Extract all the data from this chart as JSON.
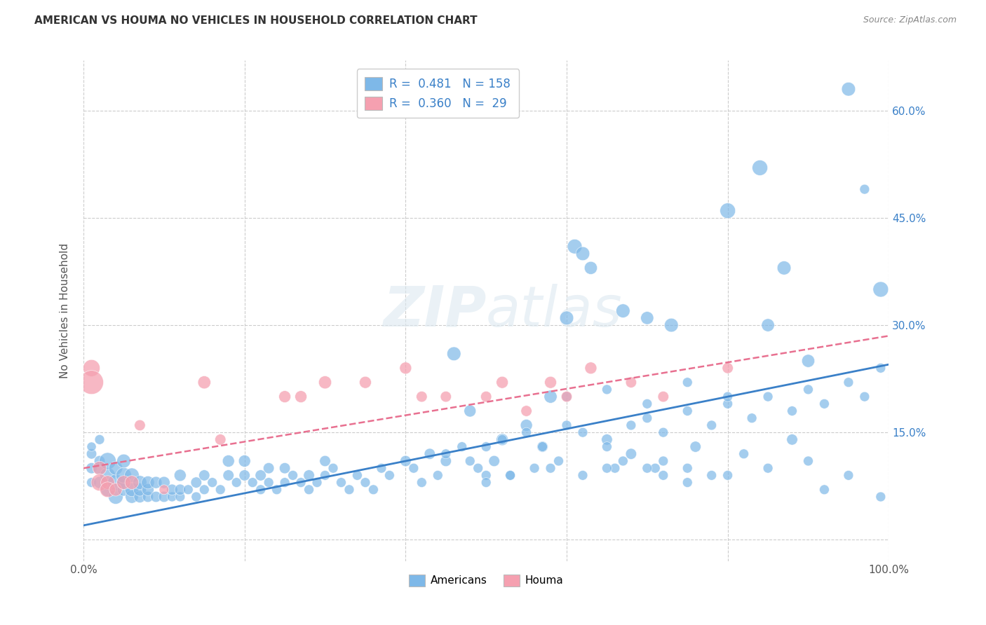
{
  "title": "AMERICAN VS HOUMA NO VEHICLES IN HOUSEHOLD CORRELATION CHART",
  "source": "Source: ZipAtlas.com",
  "ylabel": "No Vehicles in Household",
  "xlim": [
    0,
    1.0
  ],
  "ylim": [
    -0.03,
    0.67
  ],
  "xticks": [
    0.0,
    0.2,
    0.4,
    0.6,
    0.8,
    1.0
  ],
  "xticklabels": [
    "0.0%",
    "",
    "",
    "",
    "",
    "100.0%"
  ],
  "yticks": [
    0.0,
    0.15,
    0.3,
    0.45,
    0.6
  ],
  "yticklabels": [
    "",
    "15.0%",
    "30.0%",
    "45.0%",
    "60.0%"
  ],
  "blue_color": "#7EB8E8",
  "pink_color": "#F5A0B0",
  "blue_line_color": "#3A80C8",
  "pink_line_color": "#E87090",
  "legend_R_blue": "R =  0.481",
  "legend_N_blue": "N = 158",
  "legend_R_pink": "R =  0.360",
  "legend_N_pink": "N =  29",
  "watermark_zip": "ZIP",
  "watermark_atlas": "atlas",
  "blue_scatter_x": [
    0.01,
    0.01,
    0.01,
    0.01,
    0.02,
    0.02,
    0.02,
    0.02,
    0.03,
    0.03,
    0.03,
    0.04,
    0.04,
    0.04,
    0.05,
    0.05,
    0.05,
    0.05,
    0.06,
    0.06,
    0.06,
    0.07,
    0.07,
    0.07,
    0.08,
    0.08,
    0.08,
    0.09,
    0.09,
    0.1,
    0.1,
    0.11,
    0.11,
    0.12,
    0.12,
    0.12,
    0.13,
    0.14,
    0.14,
    0.15,
    0.15,
    0.16,
    0.17,
    0.18,
    0.18,
    0.19,
    0.2,
    0.2,
    0.21,
    0.22,
    0.22,
    0.23,
    0.23,
    0.24,
    0.25,
    0.25,
    0.26,
    0.27,
    0.28,
    0.28,
    0.29,
    0.3,
    0.3,
    0.31,
    0.32,
    0.33,
    0.34,
    0.35,
    0.36,
    0.37,
    0.38,
    0.4,
    0.41,
    0.42,
    0.43,
    0.44,
    0.45,
    0.46,
    0.47,
    0.48,
    0.49,
    0.5,
    0.51,
    0.52,
    0.53,
    0.55,
    0.56,
    0.57,
    0.58,
    0.59,
    0.6,
    0.61,
    0.62,
    0.63,
    0.65,
    0.66,
    0.67,
    0.68,
    0.7,
    0.71,
    0.72,
    0.73,
    0.75,
    0.76,
    0.78,
    0.8,
    0.82,
    0.84,
    0.85,
    0.87
  ],
  "blue_scatter_y": [
    0.08,
    0.1,
    0.12,
    0.13,
    0.08,
    0.1,
    0.11,
    0.14,
    0.07,
    0.09,
    0.11,
    0.06,
    0.08,
    0.1,
    0.07,
    0.08,
    0.09,
    0.11,
    0.06,
    0.07,
    0.09,
    0.06,
    0.07,
    0.08,
    0.06,
    0.07,
    0.08,
    0.06,
    0.08,
    0.06,
    0.08,
    0.06,
    0.07,
    0.06,
    0.07,
    0.09,
    0.07,
    0.06,
    0.08,
    0.07,
    0.09,
    0.08,
    0.07,
    0.09,
    0.11,
    0.08,
    0.09,
    0.11,
    0.08,
    0.07,
    0.09,
    0.08,
    0.1,
    0.07,
    0.08,
    0.1,
    0.09,
    0.08,
    0.07,
    0.09,
    0.08,
    0.09,
    0.11,
    0.1,
    0.08,
    0.07,
    0.09,
    0.08,
    0.07,
    0.1,
    0.09,
    0.11,
    0.1,
    0.08,
    0.12,
    0.09,
    0.11,
    0.26,
    0.13,
    0.18,
    0.1,
    0.09,
    0.11,
    0.14,
    0.09,
    0.16,
    0.1,
    0.13,
    0.2,
    0.11,
    0.31,
    0.41,
    0.4,
    0.38,
    0.14,
    0.1,
    0.32,
    0.12,
    0.31,
    0.1,
    0.11,
    0.3,
    0.08,
    0.13,
    0.09,
    0.46,
    0.12,
    0.52,
    0.3,
    0.38
  ],
  "blue_scatter_size": [
    20,
    25,
    22,
    18,
    30,
    35,
    25,
    20,
    40,
    50,
    60,
    45,
    55,
    40,
    35,
    45,
    50,
    40,
    35,
    40,
    45,
    30,
    35,
    40,
    25,
    30,
    35,
    25,
    30,
    25,
    30,
    20,
    25,
    20,
    25,
    30,
    20,
    20,
    25,
    20,
    25,
    20,
    20,
    25,
    30,
    20,
    25,
    30,
    20,
    20,
    25,
    20,
    25,
    20,
    20,
    25,
    20,
    20,
    20,
    25,
    20,
    20,
    25,
    20,
    20,
    20,
    20,
    20,
    20,
    20,
    20,
    25,
    20,
    20,
    25,
    20,
    25,
    40,
    20,
    30,
    20,
    20,
    25,
    30,
    20,
    30,
    20,
    25,
    35,
    20,
    40,
    45,
    40,
    35,
    25,
    20,
    40,
    25,
    35,
    20,
    20,
    40,
    20,
    25,
    20,
    50,
    20,
    50,
    35,
    40
  ],
  "blue_scatter_x2": [
    0.88,
    0.9,
    0.92,
    0.95,
    0.97,
    0.99,
    0.5,
    0.53,
    0.58,
    0.62,
    0.65,
    0.67,
    0.7,
    0.72,
    0.75,
    0.8,
    0.85,
    0.9,
    0.95,
    0.99,
    0.45,
    0.48,
    0.5,
    0.52,
    0.55,
    0.57,
    0.6,
    0.62,
    0.65,
    0.68,
    0.7,
    0.72,
    0.75,
    0.78,
    0.8,
    0.83,
    0.85,
    0.88,
    0.9,
    0.92,
    0.95,
    0.97,
    0.99,
    0.6,
    0.65,
    0.7,
    0.75,
    0.8
  ],
  "blue_scatter_y2": [
    0.14,
    0.25,
    0.07,
    0.63,
    0.49,
    0.35,
    0.08,
    0.09,
    0.1,
    0.09,
    0.1,
    0.11,
    0.1,
    0.09,
    0.1,
    0.09,
    0.1,
    0.11,
    0.09,
    0.06,
    0.12,
    0.11,
    0.13,
    0.14,
    0.15,
    0.13,
    0.16,
    0.15,
    0.13,
    0.16,
    0.17,
    0.15,
    0.18,
    0.16,
    0.19,
    0.17,
    0.2,
    0.18,
    0.21,
    0.19,
    0.22,
    0.2,
    0.24,
    0.2,
    0.21,
    0.19,
    0.22,
    0.2
  ],
  "blue_scatter_size2": [
    25,
    35,
    20,
    40,
    20,
    50,
    20,
    20,
    20,
    20,
    20,
    20,
    20,
    20,
    20,
    20,
    20,
    20,
    20,
    20,
    20,
    20,
    20,
    20,
    20,
    20,
    20,
    20,
    20,
    20,
    20,
    20,
    20,
    20,
    20,
    20,
    20,
    20,
    20,
    20,
    20,
    20,
    20,
    20,
    20,
    20,
    20,
    20
  ],
  "pink_scatter_x": [
    0.01,
    0.01,
    0.02,
    0.02,
    0.03,
    0.03,
    0.04,
    0.05,
    0.06,
    0.07,
    0.1,
    0.15,
    0.17,
    0.25,
    0.27,
    0.3,
    0.35,
    0.4,
    0.42,
    0.45,
    0.5,
    0.52,
    0.55,
    0.58,
    0.6,
    0.63,
    0.68,
    0.72,
    0.8
  ],
  "pink_scatter_y": [
    0.24,
    0.22,
    0.1,
    0.08,
    0.08,
    0.07,
    0.07,
    0.08,
    0.08,
    0.16,
    0.07,
    0.22,
    0.14,
    0.2,
    0.2,
    0.22,
    0.22,
    0.24,
    0.2,
    0.2,
    0.2,
    0.22,
    0.18,
    0.22,
    0.2,
    0.24,
    0.22,
    0.2,
    0.24
  ],
  "pink_scatter_size": [
    60,
    120,
    40,
    60,
    40,
    50,
    35,
    40,
    40,
    25,
    20,
    35,
    25,
    30,
    30,
    35,
    30,
    30,
    25,
    25,
    25,
    30,
    25,
    30,
    25,
    30,
    25,
    25,
    25
  ],
  "blue_line_y_start": 0.02,
  "blue_line_y_end": 0.245,
  "pink_line_y_start": 0.1,
  "pink_line_y_end": 0.285
}
